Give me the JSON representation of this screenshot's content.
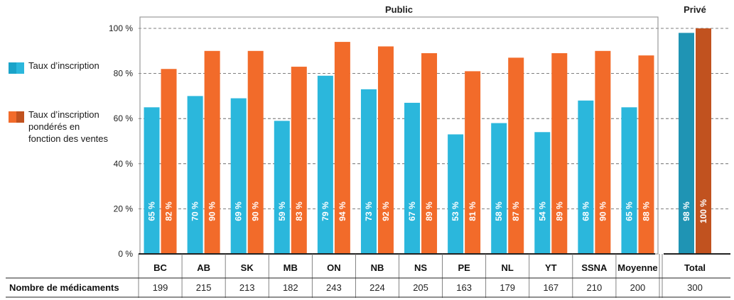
{
  "legend": {
    "items": [
      {
        "label": "Taux d’inscription",
        "color_a": "#1aa3c9",
        "color_b": "#2bb7dc"
      },
      {
        "label": "Taux d’inscription pondérés en fonction des ventes",
        "color_a": "#f26b2a",
        "color_b": "#c1521f"
      }
    ]
  },
  "chart_data": {
    "type": "bar",
    "group_labels": {
      "public": "Public",
      "private": "Privé"
    },
    "categories": [
      "BC",
      "AB",
      "SK",
      "MB",
      "ON",
      "NB",
      "NS",
      "PE",
      "NL",
      "YT",
      "SSNA",
      "Moyenne",
      "Total"
    ],
    "series": [
      {
        "name": "Taux d’inscription",
        "values": [
          65,
          70,
          69,
          59,
          79,
          73,
          67,
          53,
          58,
          54,
          68,
          65,
          98
        ],
        "labels": [
          "65 %",
          "70 %",
          "69 %",
          "59 %",
          "79 %",
          "73 %",
          "67 %",
          "53 %",
          "58 %",
          "54 %",
          "68 %",
          "65 %",
          "98 %"
        ]
      },
      {
        "name": "Taux d’inscription pondérés en fonction des ventes",
        "values": [
          82,
          90,
          90,
          83,
          94,
          92,
          89,
          81,
          87,
          89,
          90,
          88,
          100
        ],
        "labels": [
          "82 %",
          "90 %",
          "90 %",
          "83 %",
          "94 %",
          "92 %",
          "89 %",
          "81 %",
          "87 %",
          "89 %",
          "90 %",
          "88 %",
          "100 %"
        ]
      }
    ],
    "yticks": [
      "0 %",
      "20 %",
      "40 %",
      "60 %",
      "80 %",
      "100 %"
    ],
    "ylim": [
      0,
      100
    ],
    "row_label": "Nombre de médicaments",
    "row_values": [
      "199",
      "215",
      "213",
      "182",
      "243",
      "224",
      "205",
      "163",
      "179",
      "167",
      "210",
      "200",
      "300"
    ],
    "colors": {
      "public_blue": "#2bb7dc",
      "public_orange": "#f26b2a",
      "private_blue": "#1f94b4",
      "private_orange": "#c1521f"
    }
  }
}
